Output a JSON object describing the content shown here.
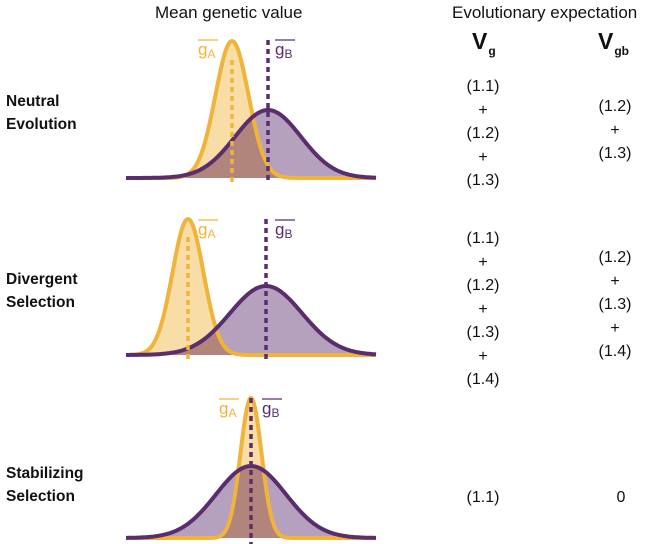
{
  "headers": {
    "mean_genetic_value": "Mean genetic value",
    "evolutionary_expectation": "Evolutionary expectation",
    "vg": {
      "main": "V",
      "sub": "g"
    },
    "vgb": {
      "main": "V",
      "sub": "gb"
    }
  },
  "colors": {
    "A": "#f0b43b",
    "B": "#5a2d6e",
    "overlap": "#b07f6e"
  },
  "group_labels": {
    "A": "g",
    "A_sub": "A",
    "B": "g",
    "B_sub": "B"
  },
  "rows": [
    {
      "label_line1": "Neutral",
      "label_line2": "Evolution",
      "vg_terms": [
        "(1.1)",
        "+",
        "(1.2)",
        "+",
        "(1.3)"
      ],
      "vgb_terms": [
        "(1.2)",
        "+",
        "(1.3)"
      ]
    },
    {
      "label_line1": "Divergent",
      "label_line2": "Selection",
      "vg_terms": [
        "(1.1)",
        "+",
        "(1.2)",
        "+",
        "(1.3)",
        "+",
        "(1.4)"
      ],
      "vgb_terms": [
        "(1.2)",
        "+",
        "(1.3)",
        "+",
        "(1.4)"
      ]
    },
    {
      "label_line1": "Stabilizing",
      "label_line2": "Selection",
      "vg_terms": [
        "(1.1)"
      ],
      "vgb_terms": [
        "0"
      ]
    }
  ]
}
